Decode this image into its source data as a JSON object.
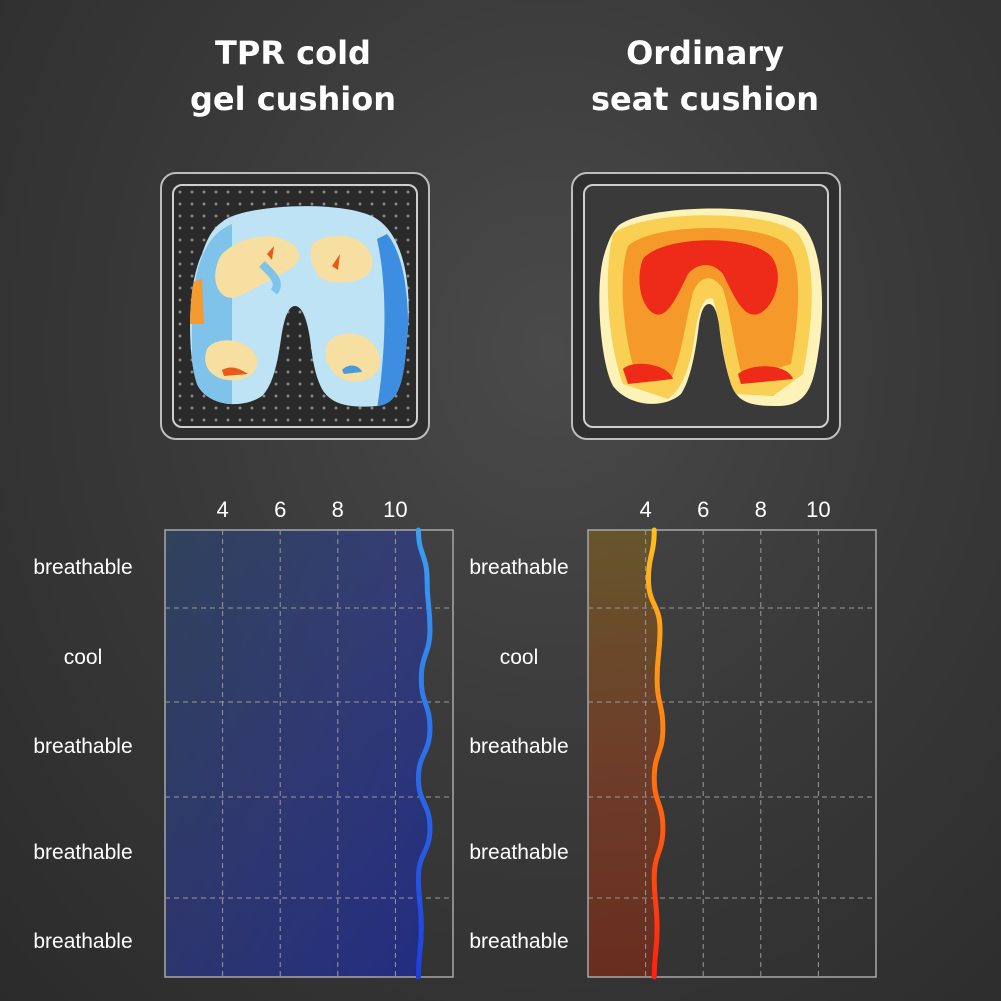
{
  "titles": {
    "left": "TPR cold\ngel cushion",
    "right": "Ordinary\nseat cushion"
  },
  "heatmaps": [
    {
      "name": "TPR cold gel cushion pressure map",
      "palette": [
        "#bde3f4",
        "#7fc3ea",
        "#f6dfa0",
        "#e85a1a"
      ]
    },
    {
      "name": "Ordinary seat cushion pressure map",
      "palette": [
        "#fdf3b8",
        "#f9cf54",
        "#f59a2a",
        "#ee2a18"
      ]
    }
  ],
  "chart_data": [
    {
      "type": "line",
      "xticks": [
        "4",
        "6",
        "8",
        "10"
      ],
      "xlim": [
        2,
        12
      ],
      "row_labels": [
        "breathable",
        "cool",
        "breathable",
        "breathable",
        "breathable"
      ],
      "series": [
        {
          "x": [
            10.8,
            11.1,
            11.2,
            10.9,
            11.2,
            10.8,
            11.2,
            10.8,
            10.9,
            10.8
          ],
          "color": "#2a7af0"
        }
      ]
    },
    {
      "type": "line",
      "xticks": [
        "4",
        "6",
        "8",
        "10"
      ],
      "xlim": [
        2,
        12
      ],
      "row_labels": [
        "breathable",
        "cool",
        "breathable",
        "breathable",
        "breathable"
      ],
      "series": [
        {
          "x": [
            4.3,
            4.1,
            4.5,
            4.4,
            4.6,
            4.3,
            4.6,
            4.3,
            4.4,
            4.3
          ],
          "color": "#ff7a10"
        }
      ]
    }
  ],
  "colors": {
    "grid_border": "#a8a8a8",
    "grid_dash": "#9a9a9a",
    "left_line_top": "#3aa0f0",
    "left_line_bottom": "#1f3fe0",
    "right_line_top": "#ffc020",
    "right_line_bottom": "#ff2010"
  }
}
